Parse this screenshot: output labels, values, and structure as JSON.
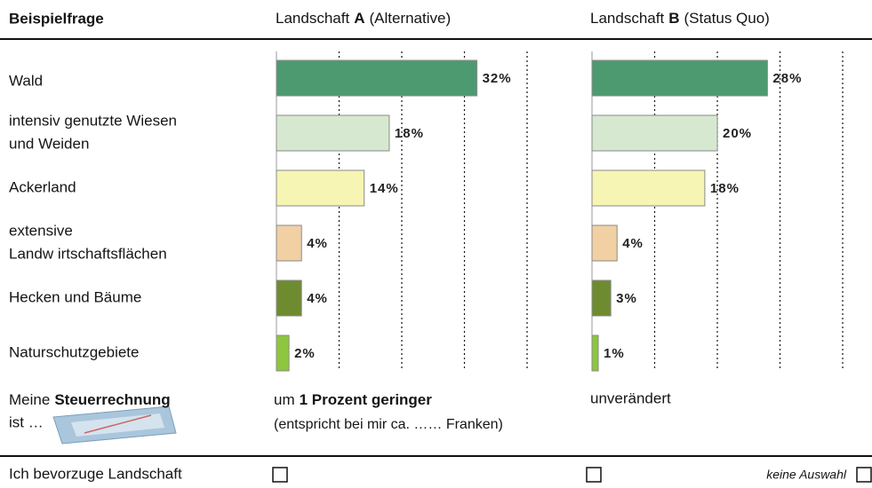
{
  "header": {
    "question": "Beispielfrage",
    "option_a": {
      "prefix": "Landschaft",
      "letter": "A",
      "suffix": "(Alternative)"
    },
    "option_b": {
      "prefix": "Landschaft",
      "letter": "B",
      "suffix": "(Status Quo)"
    }
  },
  "categories": [
    [
      "Wald"
    ],
    [
      "intensiv genutzte Wiesen",
      "und Weiden"
    ],
    [
      "Ackerland"
    ],
    [
      "extensive",
      "Landw irtschaftsflächen"
    ],
    [
      "Hecken und Bäume"
    ],
    [
      "Naturschutzgebiete"
    ]
  ],
  "colors": [
    "#4d9a70",
    "#d6e9d0",
    "#f6f5b4",
    "#f1d0a4",
    "#6f8b30",
    "#8dc63f"
  ],
  "charts": [
    {
      "values": [
        32,
        18,
        14,
        4,
        4,
        2
      ],
      "value_labels": [
        "32%",
        "18%",
        "14%",
        "4%",
        "4%",
        "2%"
      ],
      "xlim": [
        0,
        40
      ],
      "xticks": [
        10,
        20,
        30,
        40
      ]
    },
    {
      "values": [
        28,
        20,
        18,
        4,
        3,
        1
      ],
      "value_labels": [
        "28%",
        "20%",
        "18%",
        "4%",
        "3%",
        "1%"
      ],
      "xlim": [
        0,
        40
      ],
      "xticks": [
        10,
        20,
        30,
        40
      ]
    }
  ],
  "tax": {
    "prefix": "Meine",
    "bold": "Steuerrechnung",
    "line2": "ist …",
    "option_a": {
      "prefix": "um",
      "bold": "1 Prozent geringer",
      "line2": "(entspricht bei mir ca.  …… Franken)"
    },
    "option_b": "unverändert"
  },
  "preference": {
    "label": "Ich bevorzuge Landschaft",
    "none": "keine Auswahl"
  }
}
